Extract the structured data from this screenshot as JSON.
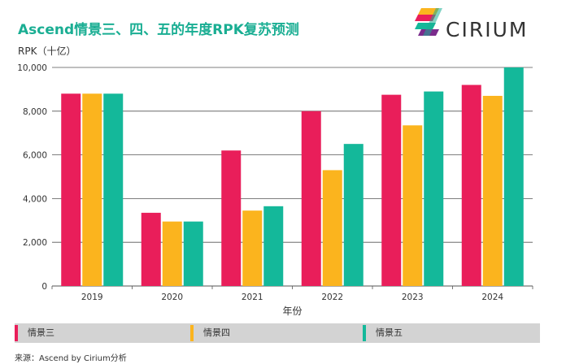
{
  "title": "Ascend情景三、四、五的年度RPK复苏预测",
  "unit_label": "RPK（十亿）",
  "brand": "CIRIUM",
  "source": "来源：Ascend by Cirium分析",
  "colors": {
    "s3": "#e91e5a",
    "s4": "#fbb41e",
    "s5": "#14b89a",
    "title": "#1aae93"
  },
  "chart_data": {
    "type": "bar",
    "title": "Ascend情景三、四、五的年度RPK复苏预测",
    "xlabel": "年份",
    "ylabel": "RPK（十亿）",
    "categories": [
      "2019",
      "2020",
      "2021",
      "2022",
      "2023",
      "2024"
    ],
    "ylim": [
      0,
      10000
    ],
    "yticks": [
      "0",
      "2,000",
      "4,000",
      "6,000",
      "8,000",
      "10,000"
    ],
    "grid": true,
    "legend_position": "bottom",
    "series": [
      {
        "name": "情景三",
        "color": "#e91e5a",
        "values": [
          8800,
          3350,
          6200,
          8000,
          8750,
          9200
        ]
      },
      {
        "name": "情景四",
        "color": "#fbb41e",
        "values": [
          8800,
          2950,
          3450,
          5300,
          7350,
          8700
        ]
      },
      {
        "name": "情景五",
        "color": "#14b89a",
        "values": [
          8800,
          2950,
          3650,
          6500,
          8900,
          10000
        ]
      }
    ]
  }
}
